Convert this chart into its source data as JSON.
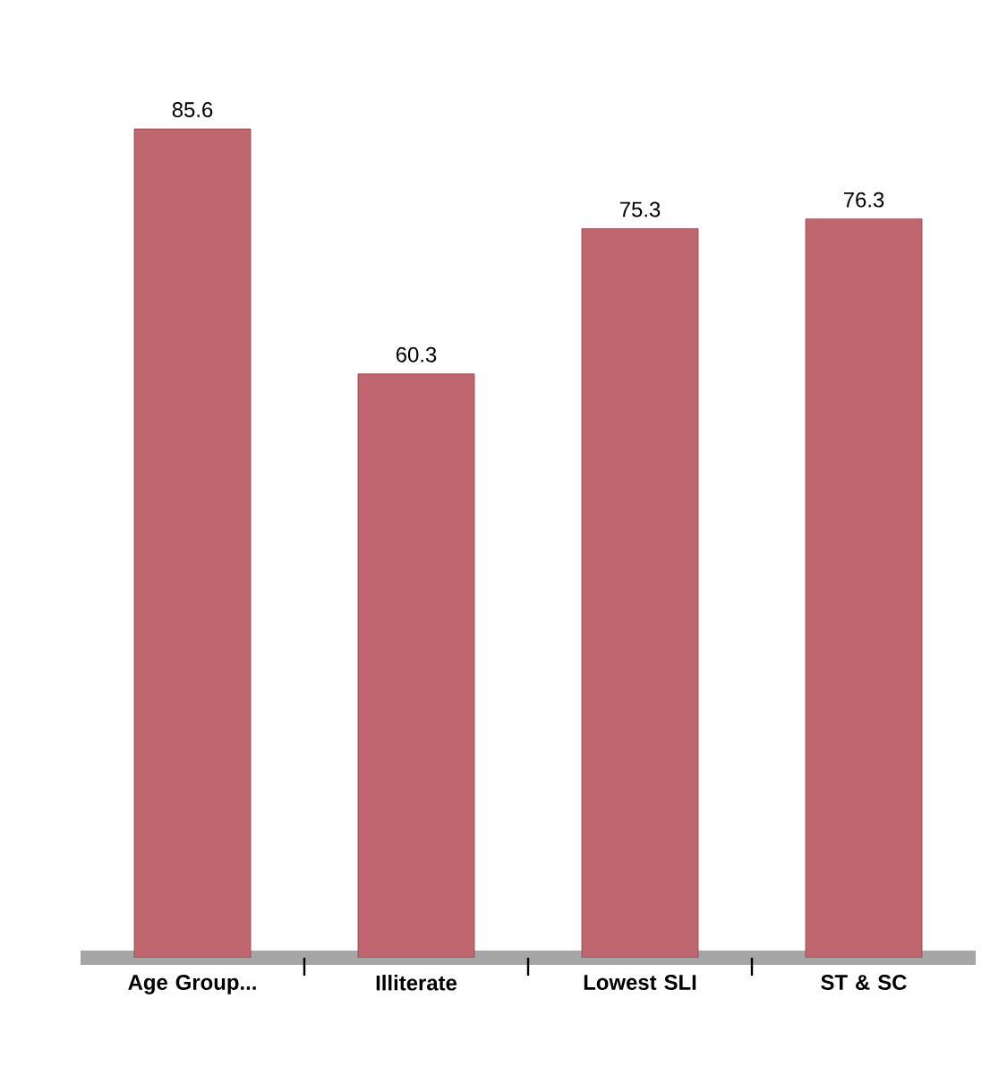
{
  "chart_data": {
    "type": "bar",
    "categories": [
      "Age Group...",
      "Illiterate",
      "Lowest SLI",
      "ST & SC"
    ],
    "values": [
      85.6,
      60.3,
      75.3,
      76.3
    ],
    "color": "#c0666e",
    "data_labels": true
  }
}
